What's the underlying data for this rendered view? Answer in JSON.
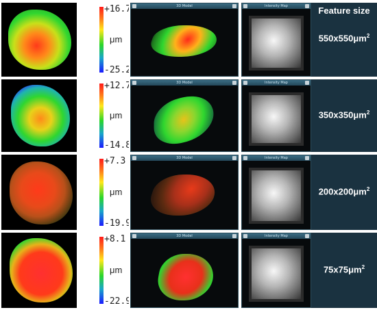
{
  "header": {
    "feature_size_label": "Feature size"
  },
  "panels": {
    "model_title": "3D Model",
    "intensity_title": "Intensity Map",
    "unit": "μm"
  },
  "rows": [
    {
      "max": "+16.7",
      "min": "-25.2",
      "feature": "550x550μm",
      "sup": "2"
    },
    {
      "max": "+12.7",
      "min": "-14.8",
      "feature": "350x350μm",
      "sup": "2"
    },
    {
      "max": "+7.3",
      "min": "-19.9",
      "feature": "200x200μm",
      "sup": "2"
    },
    {
      "max": "+8.1",
      "min": "-22.9",
      "feature": "75x75μm",
      "sup": "2"
    }
  ],
  "colors": {
    "label_panel_bg": "#1a3240",
    "window_titlebar": "#2f5c72"
  }
}
